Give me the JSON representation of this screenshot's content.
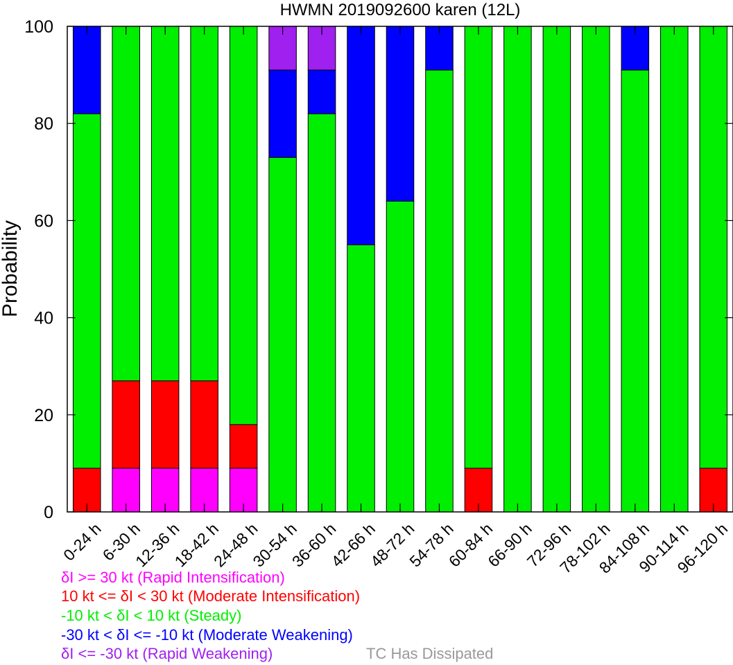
{
  "chart_data": {
    "type": "bar",
    "stacked": true,
    "title": "HWMN 2019092600 karen (12L)",
    "xlabel": "",
    "ylabel": "Probability",
    "ylim": [
      0,
      100
    ],
    "yticks": [
      0,
      20,
      40,
      60,
      80,
      100
    ],
    "grid": false,
    "legend_position": "bottom-left",
    "categories": [
      "0-24 h",
      "6-30 h",
      "12-36 h",
      "18-42 h",
      "24-48 h",
      "30-54 h",
      "36-60 h",
      "42-66 h",
      "48-72 h",
      "54-78 h",
      "60-84 h",
      "66-90 h",
      "72-96 h",
      "78-102 h",
      "84-108 h",
      "90-114 h",
      "96-120 h"
    ],
    "series": [
      {
        "name": "δI >= 30 kt (Rapid Intensification)",
        "color": "#ff00ff",
        "values": [
          0,
          9,
          9,
          9,
          9,
          0,
          0,
          0,
          0,
          0,
          0,
          0,
          0,
          0,
          0,
          0,
          0
        ]
      },
      {
        "name": "10 kt <= δI < 30 kt (Moderate Intensification)",
        "color": "#ff0000",
        "values": [
          9,
          18,
          18,
          18,
          9,
          0,
          0,
          0,
          0,
          0,
          9,
          0,
          0,
          0,
          0,
          0,
          9
        ]
      },
      {
        "name": "-10 kt < δI < 10 kt (Steady)",
        "color": "#00ee00",
        "values": [
          73,
          73,
          73,
          73,
          82,
          73,
          82,
          55,
          64,
          91,
          91,
          100,
          100,
          100,
          91,
          100,
          91
        ]
      },
      {
        "name": "-30 kt < δI <= -10 kt (Moderate Weakening)",
        "color": "#0000ff",
        "values": [
          18,
          0,
          0,
          0,
          0,
          18,
          9,
          45,
          36,
          9,
          0,
          0,
          0,
          0,
          9,
          0,
          0
        ]
      },
      {
        "name": "δI <= -30 kt (Rapid Weakening)",
        "color": "#a020f0",
        "values": [
          0,
          0,
          0,
          0,
          0,
          9,
          9,
          0,
          0,
          0,
          0,
          0,
          0,
          0,
          0,
          0,
          0
        ]
      }
    ],
    "extra_legend": {
      "label": "TC Has Dissipated",
      "color": "#999999"
    }
  }
}
